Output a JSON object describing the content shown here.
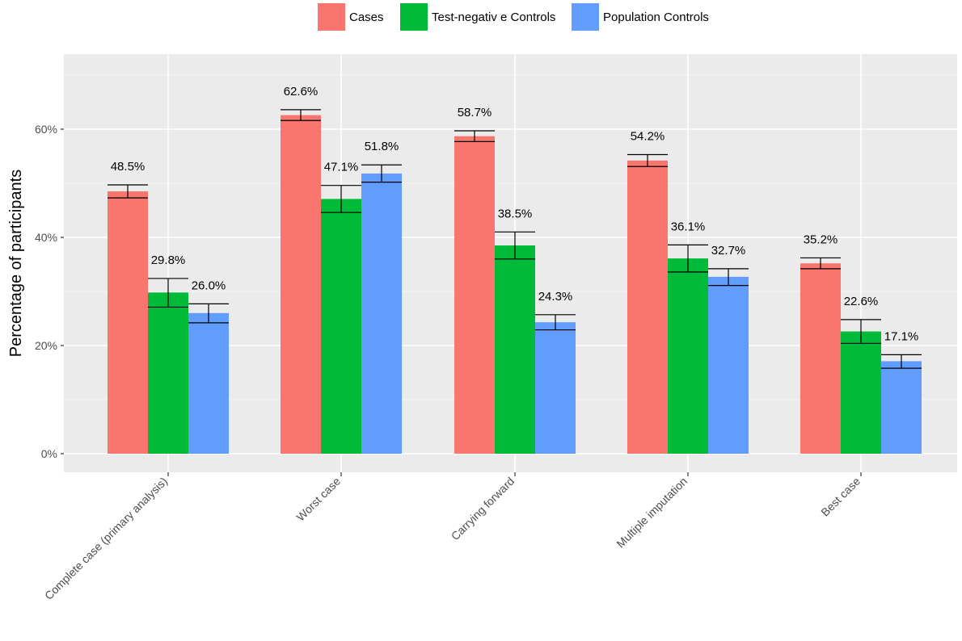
{
  "chart_data": {
    "type": "bar",
    "ylabel": "Percentage of participants",
    "xlabel": "",
    "ylim": [
      0,
      72
    ],
    "yticks": [
      0,
      20,
      40,
      60
    ],
    "ytick_labels": [
      "0%",
      "20%",
      "40%",
      "60%"
    ],
    "grid": true,
    "legend_position": "top",
    "categories": [
      "Complete case (primary analysis)",
      "Worst case",
      "Carrying forward",
      "Multiple imputation",
      "Best case"
    ],
    "series": [
      {
        "name": "Cases",
        "color": "#F8766D",
        "values": [
          48.5,
          62.6,
          58.7,
          54.2,
          35.2
        ],
        "labels": [
          "48.5%",
          "62.6%",
          "58.7%",
          "54.2%",
          "35.2%"
        ],
        "ci_low": [
          47.3,
          61.6,
          57.7,
          53.1,
          34.2
        ],
        "ci_high": [
          49.7,
          63.6,
          59.7,
          55.3,
          36.2
        ]
      },
      {
        "name": "Test-negativ e Controls",
        "color": "#00BA38",
        "values": [
          29.8,
          47.1,
          38.5,
          36.1,
          22.6
        ],
        "labels": [
          "29.8%",
          "47.1%",
          "38.5%",
          "36.1%",
          "22.6%"
        ],
        "ci_low": [
          27.1,
          44.6,
          36.0,
          33.6,
          20.4
        ],
        "ci_high": [
          32.4,
          49.6,
          41.0,
          38.6,
          24.8
        ]
      },
      {
        "name": "Population Controls",
        "color": "#619CFF",
        "values": [
          26.0,
          51.8,
          24.3,
          32.7,
          17.1
        ],
        "labels": [
          "26.0%",
          "51.8%",
          "24.3%",
          "32.7%",
          "17.1%"
        ],
        "ci_low": [
          24.2,
          50.2,
          22.9,
          31.1,
          15.8
        ],
        "ci_high": [
          27.7,
          53.4,
          25.7,
          34.2,
          18.3
        ]
      }
    ]
  }
}
